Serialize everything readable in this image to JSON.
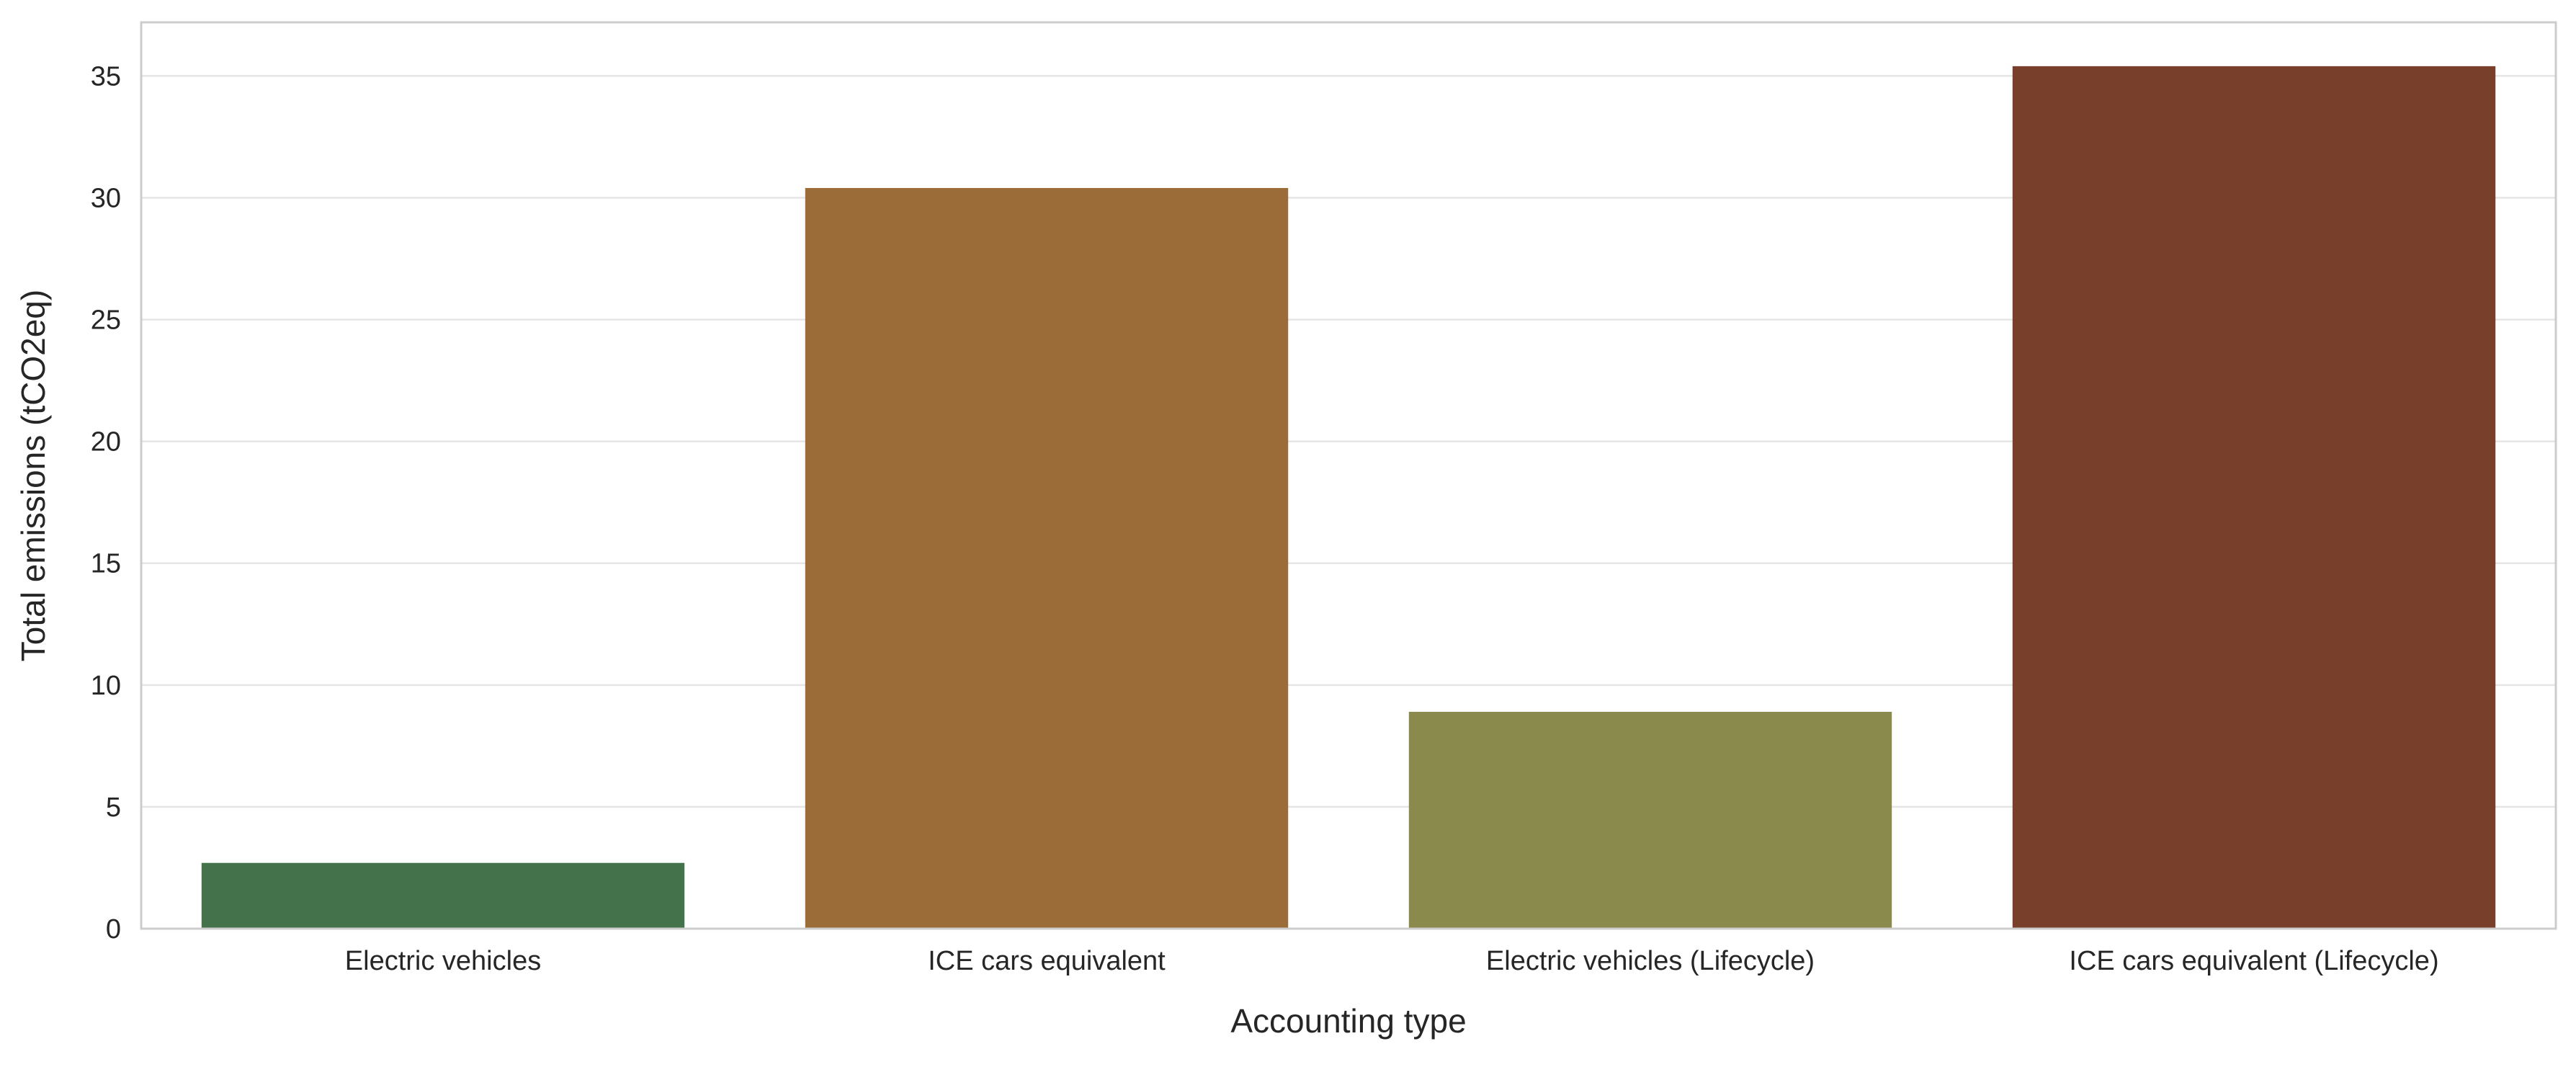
{
  "chart_data": {
    "type": "bar",
    "title": "",
    "xlabel": "Accounting type",
    "ylabel": "Total emissions (tCO2eq)",
    "categories": [
      "Electric vehicles",
      "ICE cars equivalent",
      "Electric vehicles (Lifecycle)",
      "ICE cars equivalent (Lifecycle)"
    ],
    "values": [
      2.7,
      30.4,
      8.9,
      35.4
    ],
    "colors": [
      "#44734b",
      "#9b6c38",
      "#8a8a4d",
      "#78402a"
    ],
    "ylim": [
      0,
      37.2
    ],
    "yticks": [
      0,
      5,
      10,
      15,
      20,
      25,
      30,
      35
    ],
    "grid": "horizontal",
    "legend": "none"
  }
}
